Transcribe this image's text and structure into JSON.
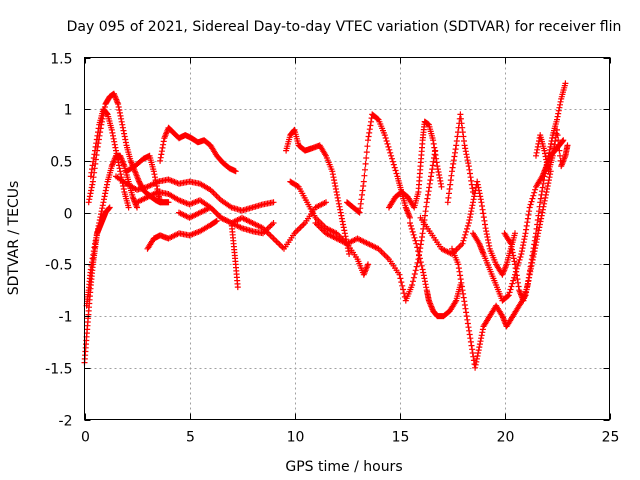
{
  "chart_data": {
    "type": "scatter",
    "title": "Day 095 of 2021, Sidereal Day-to-day VTEC variation (SDTVAR) for receiver flin",
    "xlabel": "GPS time / hours",
    "ylabel": "SDTVAR / TECUs",
    "xlim": [
      0,
      25
    ],
    "ylim": [
      -2,
      1.5
    ],
    "x_ticks": [
      0,
      5,
      10,
      15,
      20,
      25
    ],
    "y_ticks": [
      -2,
      -1.5,
      -1,
      -0.5,
      0,
      0.5,
      1,
      1.5
    ],
    "x_tick_labels": [
      "0",
      "5",
      "10",
      "15",
      "20",
      "25"
    ],
    "y_tick_labels": [
      "-2",
      "-1.5",
      "-1",
      "-0.5",
      "0",
      "0.5",
      "1",
      "1.5"
    ],
    "grid": true,
    "marker": "+",
    "color": "#ff0000",
    "series": [
      {
        "values": [
          [
            0.0,
            -1.45
          ],
          [
            0.1,
            -1.2
          ],
          [
            0.2,
            -0.95
          ],
          [
            0.3,
            -0.7
          ],
          [
            0.4,
            -0.5
          ],
          [
            0.5,
            -0.35
          ],
          [
            0.6,
            -0.2
          ],
          [
            0.7,
            -0.15
          ],
          [
            0.8,
            -0.1
          ],
          [
            0.9,
            -0.05
          ],
          [
            1.0,
            0.0
          ],
          [
            1.2,
            0.05
          ]
        ]
      },
      {
        "values": [
          [
            0.1,
            -0.9
          ],
          [
            0.2,
            -0.75
          ],
          [
            0.3,
            -0.55
          ],
          [
            0.5,
            -0.3
          ],
          [
            0.7,
            -0.1
          ],
          [
            0.9,
            0.1
          ],
          [
            1.1,
            0.3
          ],
          [
            1.3,
            0.45
          ],
          [
            1.5,
            0.55
          ],
          [
            1.7,
            0.55
          ],
          [
            1.9,
            0.45
          ],
          [
            2.1,
            0.3
          ],
          [
            2.3,
            0.15
          ],
          [
            2.5,
            0.05
          ]
        ]
      },
      {
        "values": [
          [
            0.2,
            0.1
          ],
          [
            0.4,
            0.3
          ],
          [
            0.6,
            0.6
          ],
          [
            0.8,
            0.85
          ],
          [
            1.0,
            1.05
          ],
          [
            1.2,
            1.12
          ],
          [
            1.4,
            1.15
          ],
          [
            1.6,
            1.05
          ],
          [
            1.8,
            0.85
          ],
          [
            2.0,
            0.65
          ],
          [
            2.2,
            0.5
          ],
          [
            2.4,
            0.4
          ],
          [
            2.6,
            0.3
          ],
          [
            2.8,
            0.22
          ],
          [
            3.0,
            0.18
          ],
          [
            3.2,
            0.15
          ],
          [
            3.4,
            0.12
          ],
          [
            3.6,
            0.1
          ],
          [
            3.8,
            0.1
          ],
          [
            4.0,
            0.1
          ]
        ]
      },
      {
        "values": [
          [
            0.3,
            0.35
          ],
          [
            0.5,
            0.6
          ],
          [
            0.7,
            0.85
          ],
          [
            0.9,
            1.0
          ],
          [
            1.1,
            0.95
          ],
          [
            1.3,
            0.8
          ],
          [
            1.5,
            0.6
          ],
          [
            1.7,
            0.4
          ],
          [
            1.9,
            0.2
          ],
          [
            2.1,
            0.05
          ]
        ]
      },
      {
        "values": [
          [
            2.0,
            0.4
          ],
          [
            2.4,
            0.45
          ],
          [
            2.8,
            0.52
          ],
          [
            3.1,
            0.55
          ],
          [
            3.3,
            0.4
          ],
          [
            3.5,
            0.2
          ],
          [
            3.6,
            0.1
          ]
        ]
      },
      {
        "values": [
          [
            3.6,
            0.5
          ],
          [
            3.8,
            0.72
          ],
          [
            4.0,
            0.82
          ],
          [
            4.2,
            0.78
          ],
          [
            4.5,
            0.72
          ],
          [
            4.8,
            0.75
          ],
          [
            5.1,
            0.72
          ],
          [
            5.4,
            0.68
          ],
          [
            5.7,
            0.7
          ],
          [
            6.0,
            0.65
          ],
          [
            6.3,
            0.55
          ],
          [
            6.6,
            0.48
          ],
          [
            6.9,
            0.43
          ],
          [
            7.2,
            0.4
          ]
        ]
      },
      {
        "values": [
          [
            1.5,
            0.35
          ],
          [
            2.0,
            0.28
          ],
          [
            2.5,
            0.22
          ],
          [
            3.0,
            0.25
          ],
          [
            3.5,
            0.3
          ],
          [
            4.0,
            0.32
          ],
          [
            4.5,
            0.28
          ],
          [
            5.0,
            0.3
          ],
          [
            5.5,
            0.28
          ],
          [
            6.0,
            0.22
          ],
          [
            6.5,
            0.12
          ],
          [
            7.0,
            0.05
          ],
          [
            7.5,
            0.02
          ],
          [
            8.0,
            0.05
          ],
          [
            8.5,
            0.08
          ],
          [
            9.0,
            0.1
          ]
        ]
      },
      {
        "values": [
          [
            2.5,
            0.1
          ],
          [
            3.0,
            0.15
          ],
          [
            3.5,
            0.2
          ],
          [
            4.0,
            0.18
          ],
          [
            4.5,
            0.12
          ],
          [
            5.0,
            0.08
          ],
          [
            5.5,
            0.12
          ],
          [
            6.0,
            0.05
          ],
          [
            6.5,
            -0.05
          ],
          [
            7.0,
            -0.1
          ],
          [
            7.5,
            -0.15
          ],
          [
            8.0,
            -0.18
          ],
          [
            8.5,
            -0.2
          ],
          [
            9.0,
            -0.1
          ]
        ]
      },
      {
        "values": [
          [
            3.0,
            -0.35
          ],
          [
            3.3,
            -0.25
          ],
          [
            3.6,
            -0.22
          ],
          [
            4.0,
            -0.25
          ],
          [
            4.5,
            -0.2
          ],
          [
            5.0,
            -0.22
          ],
          [
            5.5,
            -0.18
          ],
          [
            6.0,
            -0.12
          ],
          [
            6.3,
            -0.08
          ]
        ]
      },
      {
        "values": [
          [
            4.5,
            0.0
          ],
          [
            5.0,
            -0.05
          ],
          [
            5.5,
            0.0
          ],
          [
            6.0,
            0.05
          ],
          [
            6.5,
            -0.05
          ],
          [
            7.0,
            -0.1
          ],
          [
            7.5,
            -0.05
          ],
          [
            8.0,
            -0.1
          ],
          [
            8.5,
            -0.15
          ],
          [
            9.0,
            -0.25
          ],
          [
            9.5,
            -0.35
          ],
          [
            10.0,
            -0.2
          ],
          [
            10.5,
            -0.1
          ],
          [
            11.0,
            0.05
          ],
          [
            11.5,
            0.1
          ]
        ]
      },
      {
        "values": [
          [
            7.0,
            -0.1
          ],
          [
            7.1,
            -0.3
          ],
          [
            7.2,
            -0.5
          ],
          [
            7.3,
            -0.72
          ]
        ]
      },
      {
        "values": [
          [
            9.6,
            0.6
          ],
          [
            9.8,
            0.75
          ],
          [
            10.0,
            0.8
          ],
          [
            10.2,
            0.65
          ],
          [
            10.5,
            0.6
          ],
          [
            10.8,
            0.62
          ],
          [
            11.2,
            0.65
          ],
          [
            11.5,
            0.55
          ],
          [
            11.8,
            0.4
          ],
          [
            12.0,
            0.2
          ],
          [
            12.2,
            0.0
          ],
          [
            12.4,
            -0.2
          ],
          [
            12.6,
            -0.4
          ]
        ]
      },
      {
        "values": [
          [
            9.8,
            0.3
          ],
          [
            10.2,
            0.25
          ],
          [
            10.6,
            0.1
          ],
          [
            11.0,
            -0.05
          ],
          [
            11.5,
            -0.15
          ],
          [
            12.0,
            -0.2
          ],
          [
            12.5,
            -0.3
          ],
          [
            13.0,
            -0.45
          ],
          [
            13.3,
            -0.6
          ],
          [
            13.5,
            -0.5
          ]
        ]
      },
      {
        "values": [
          [
            11.0,
            -0.1
          ],
          [
            11.5,
            -0.2
          ],
          [
            12.0,
            -0.25
          ],
          [
            12.5,
            -0.3
          ],
          [
            13.0,
            -0.25
          ],
          [
            13.5,
            -0.3
          ],
          [
            14.0,
            -0.35
          ],
          [
            14.5,
            -0.45
          ],
          [
            15.0,
            -0.6
          ],
          [
            15.3,
            -0.85
          ],
          [
            15.6,
            -0.7
          ],
          [
            15.9,
            -0.45
          ],
          [
            16.1,
            -0.2
          ],
          [
            16.3,
            0.1
          ],
          [
            16.5,
            0.35
          ],
          [
            16.7,
            0.6
          ]
        ]
      },
      {
        "values": [
          [
            12.5,
            0.1
          ],
          [
            12.8,
            0.05
          ],
          [
            13.1,
            0.0
          ],
          [
            13.3,
            0.3
          ],
          [
            13.5,
            0.7
          ],
          [
            13.7,
            0.95
          ],
          [
            14.0,
            0.9
          ],
          [
            14.3,
            0.75
          ],
          [
            14.6,
            0.55
          ],
          [
            14.9,
            0.35
          ],
          [
            15.1,
            0.2
          ],
          [
            15.3,
            0.05
          ],
          [
            15.5,
            -0.05
          ]
        ]
      },
      {
        "values": [
          [
            14.5,
            0.05
          ],
          [
            14.8,
            0.15
          ],
          [
            15.1,
            0.2
          ],
          [
            15.4,
            0.15
          ],
          [
            15.7,
            0.05
          ],
          [
            15.9,
            0.2
          ],
          [
            16.0,
            0.45
          ],
          [
            16.1,
            0.7
          ],
          [
            16.2,
            0.88
          ],
          [
            16.4,
            0.85
          ],
          [
            16.6,
            0.7
          ],
          [
            16.8,
            0.45
          ],
          [
            17.0,
            0.25
          ]
        ]
      },
      {
        "values": [
          [
            15.5,
            -0.1
          ],
          [
            15.8,
            -0.3
          ],
          [
            16.1,
            -0.55
          ],
          [
            16.3,
            -0.75
          ],
          [
            16.4,
            -0.85
          ],
          [
            16.6,
            -0.95
          ],
          [
            16.8,
            -1.0
          ],
          [
            17.1,
            -1.0
          ],
          [
            17.4,
            -0.95
          ],
          [
            17.7,
            -0.85
          ],
          [
            17.9,
            -0.7
          ]
        ]
      },
      {
        "values": [
          [
            16.0,
            -0.05
          ],
          [
            16.5,
            -0.2
          ],
          [
            17.0,
            -0.35
          ],
          [
            17.5,
            -0.4
          ],
          [
            18.0,
            -0.3
          ],
          [
            18.3,
            -0.1
          ],
          [
            18.5,
            0.1
          ],
          [
            18.7,
            0.3
          ],
          [
            18.9,
            0.1
          ],
          [
            19.1,
            -0.15
          ],
          [
            19.3,
            -0.35
          ],
          [
            19.6,
            -0.5
          ],
          [
            19.9,
            -0.6
          ],
          [
            20.1,
            -0.5
          ],
          [
            20.3,
            -0.35
          ],
          [
            20.5,
            -0.2
          ]
        ]
      },
      {
        "values": [
          [
            17.3,
            0.1
          ],
          [
            17.5,
            0.4
          ],
          [
            17.7,
            0.65
          ],
          [
            17.9,
            0.95
          ],
          [
            18.1,
            0.65
          ],
          [
            18.3,
            0.45
          ],
          [
            18.5,
            0.2
          ]
        ]
      },
      {
        "values": [
          [
            17.5,
            -0.35
          ],
          [
            17.8,
            -0.5
          ],
          [
            18.0,
            -0.75
          ],
          [
            18.2,
            -1.0
          ],
          [
            18.4,
            -1.25
          ],
          [
            18.6,
            -1.5
          ],
          [
            18.8,
            -1.3
          ],
          [
            19.0,
            -1.1
          ],
          [
            19.3,
            -1.0
          ],
          [
            19.6,
            -0.9
          ],
          [
            19.9,
            -1.0
          ],
          [
            20.1,
            -1.1
          ],
          [
            20.4,
            -1.0
          ],
          [
            20.7,
            -0.9
          ],
          [
            21.0,
            -0.8
          ],
          [
            21.2,
            -0.6
          ],
          [
            21.4,
            -0.4
          ],
          [
            21.6,
            -0.2
          ],
          [
            21.8,
            0.0
          ],
          [
            22.0,
            0.2
          ],
          [
            22.2,
            0.4
          ]
        ]
      },
      {
        "values": [
          [
            18.5,
            -0.2
          ],
          [
            18.8,
            -0.3
          ],
          [
            19.0,
            -0.4
          ],
          [
            19.3,
            -0.55
          ],
          [
            19.6,
            -0.7
          ],
          [
            19.9,
            -0.85
          ],
          [
            20.2,
            -0.8
          ],
          [
            20.5,
            -0.6
          ],
          [
            20.8,
            -0.4
          ],
          [
            21.0,
            -0.2
          ],
          [
            21.2,
            0.05
          ],
          [
            21.5,
            0.25
          ],
          [
            21.8,
            0.35
          ],
          [
            22.0,
            0.45
          ],
          [
            22.2,
            0.55
          ],
          [
            22.4,
            0.6
          ],
          [
            22.6,
            0.65
          ],
          [
            22.8,
            0.7
          ]
        ]
      },
      {
        "values": [
          [
            20.0,
            -0.2
          ],
          [
            20.3,
            -0.3
          ],
          [
            20.5,
            -0.5
          ],
          [
            20.7,
            -0.75
          ],
          [
            20.9,
            -0.85
          ],
          [
            21.1,
            -0.7
          ],
          [
            21.3,
            -0.45
          ],
          [
            21.5,
            -0.2
          ],
          [
            21.7,
            0.1
          ],
          [
            21.9,
            0.35
          ],
          [
            22.1,
            0.55
          ],
          [
            22.3,
            0.75
          ],
          [
            22.5,
            0.9
          ],
          [
            22.7,
            1.1
          ],
          [
            22.9,
            1.25
          ]
        ]
      },
      {
        "values": [
          [
            21.5,
            0.55
          ],
          [
            21.7,
            0.75
          ],
          [
            21.9,
            0.6
          ],
          [
            22.1,
            0.4
          ],
          [
            22.3,
            0.55
          ],
          [
            22.5,
            0.8
          ],
          [
            22.7,
            0.45
          ],
          [
            22.9,
            0.55
          ],
          [
            23.0,
            0.65
          ]
        ]
      }
    ]
  }
}
